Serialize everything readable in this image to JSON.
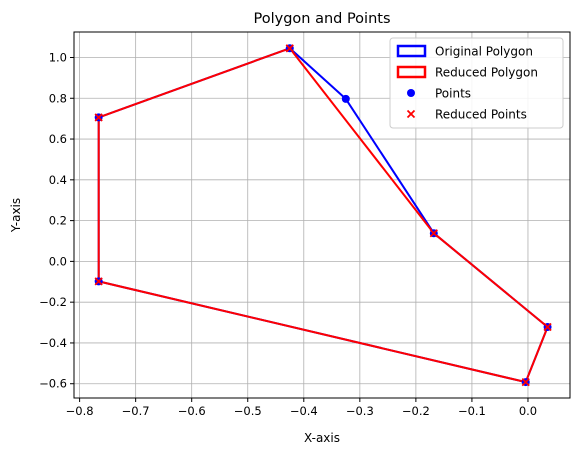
{
  "chart_data": {
    "type": "line",
    "title": "Polygon and Points",
    "xlabel": "X-axis",
    "ylabel": "Y-axis",
    "xlim": [
      -0.81,
      0.075
    ],
    "ylim": [
      -0.67,
      1.125
    ],
    "xticks": [
      -0.8,
      -0.7,
      -0.6,
      -0.5,
      -0.4,
      -0.3,
      -0.2,
      -0.1,
      0.0
    ],
    "xtick_labels": [
      "−0.8",
      "−0.7",
      "−0.6",
      "−0.5",
      "−0.4",
      "−0.3",
      "−0.2",
      "−0.1",
      "0.0"
    ],
    "yticks": [
      -0.6,
      -0.4,
      -0.2,
      0.0,
      0.2,
      0.4,
      0.6,
      0.8,
      1.0
    ],
    "ytick_labels": [
      "−0.6",
      "−0.4",
      "−0.2",
      "0.0",
      "0.2",
      "0.4",
      "0.6",
      "0.8",
      "1.0"
    ],
    "grid": true,
    "legend_position": "top-right",
    "series": [
      {
        "name": "Original Polygon",
        "kind": "polygon",
        "color": "#0000ff",
        "points": [
          [
            -0.766,
            0.706
          ],
          [
            -0.425,
            1.045
          ],
          [
            -0.325,
            0.797
          ],
          [
            -0.168,
            0.138
          ],
          [
            0.035,
            -0.322
          ],
          [
            -0.004,
            -0.592
          ],
          [
            -0.766,
            -0.098
          ]
        ]
      },
      {
        "name": "Reduced Polygon",
        "kind": "polygon",
        "color": "#ff0000",
        "points": [
          [
            -0.766,
            0.706
          ],
          [
            -0.425,
            1.045
          ],
          [
            -0.168,
            0.138
          ],
          [
            0.035,
            -0.322
          ],
          [
            -0.004,
            -0.592
          ],
          [
            -0.766,
            -0.098
          ]
        ]
      },
      {
        "name": "Points",
        "kind": "scatter-circle",
        "color": "#0000ff",
        "points": [
          [
            -0.766,
            0.706
          ],
          [
            -0.425,
            1.045
          ],
          [
            -0.325,
            0.797
          ],
          [
            -0.168,
            0.138
          ],
          [
            0.035,
            -0.322
          ],
          [
            -0.004,
            -0.592
          ],
          [
            -0.766,
            -0.098
          ]
        ]
      },
      {
        "name": "Reduced Points",
        "kind": "scatter-x",
        "color": "#ff0000",
        "points": [
          [
            -0.766,
            0.706
          ],
          [
            -0.425,
            1.045
          ],
          [
            -0.168,
            0.138
          ],
          [
            0.035,
            -0.322
          ],
          [
            -0.004,
            -0.592
          ],
          [
            -0.766,
            -0.098
          ]
        ]
      }
    ]
  }
}
